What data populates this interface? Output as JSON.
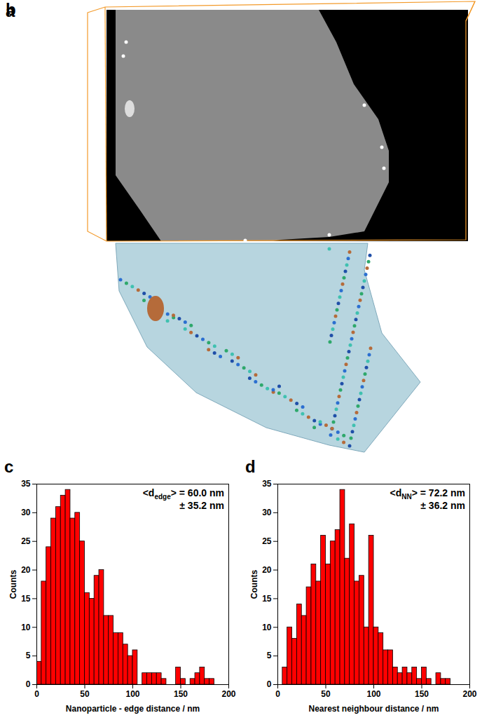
{
  "panels": [
    {
      "label": "a"
    },
    {
      "label": "b"
    }
  ],
  "chart_data": [
    {
      "type": "histogram",
      "panel": "c",
      "bins": [
        0,
        5,
        10,
        15,
        20,
        25,
        30,
        35,
        40,
        45,
        50,
        55,
        60,
        65,
        70,
        75,
        80,
        85,
        90,
        95,
        100,
        105,
        110,
        115,
        120,
        125,
        130,
        135,
        140,
        145,
        150,
        155,
        160,
        165,
        170,
        175,
        180,
        185
      ],
      "counts": [
        4,
        18,
        24,
        29,
        31,
        33,
        34,
        29,
        30,
        25,
        16,
        15,
        19,
        20,
        12,
        12,
        9,
        9,
        7,
        5,
        6,
        0,
        2,
        2,
        2,
        2,
        1,
        0,
        0,
        3,
        1,
        0,
        1,
        2,
        3,
        1,
        1
      ],
      "color": "#ff0000",
      "xlabel": "Nanoparticle - edge distance / nm",
      "ylabel": "Counts",
      "xlim": [
        0,
        200
      ],
      "xticks": [
        0,
        50,
        100,
        150,
        200
      ],
      "ylim": [
        0,
        35
      ],
      "yticks": [
        0,
        5,
        10,
        15,
        20,
        25,
        30,
        35
      ],
      "annotation": [
        "<d",
        "edge",
        "> = 60.0 nm",
        "± 35.2 nm"
      ]
    },
    {
      "type": "histogram",
      "panel": "d",
      "bins": [
        5,
        10,
        15,
        20,
        25,
        30,
        35,
        40,
        45,
        50,
        55,
        60,
        65,
        70,
        75,
        80,
        85,
        90,
        95,
        100,
        105,
        110,
        115,
        120,
        125,
        130,
        135,
        140,
        145,
        150,
        155,
        160,
        165,
        170,
        175,
        180
      ],
      "counts": [
        3,
        10,
        8,
        14,
        12,
        17,
        21,
        18,
        26,
        21,
        25,
        27,
        34,
        22,
        28,
        18,
        19,
        10,
        26,
        10,
        9,
        6,
        6,
        3,
        2,
        3,
        2,
        3,
        1,
        3,
        1,
        0,
        2,
        1,
        1
      ],
      "color": "#ff0000",
      "xlabel": "Nearest neighbour distance / nm",
      "ylabel": "Counts",
      "xlim": [
        0,
        200
      ],
      "xticks": [
        0,
        50,
        100,
        150,
        200
      ],
      "ylim": [
        0,
        35
      ],
      "yticks": [
        0,
        5,
        10,
        15,
        20,
        25,
        30,
        35
      ],
      "annotation": [
        "<d",
        "NN",
        "> = 72.2 nm",
        "± 36.2 nm"
      ]
    }
  ]
}
